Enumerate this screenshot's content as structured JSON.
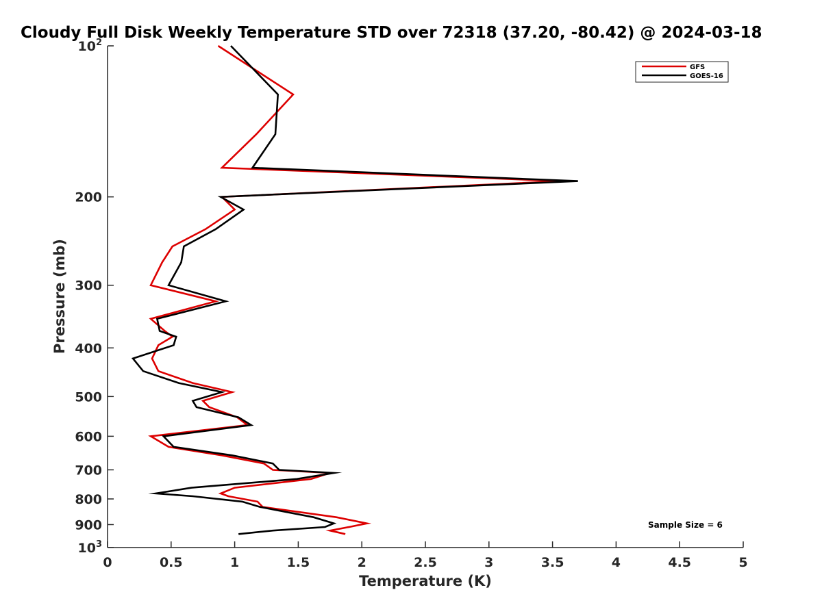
{
  "chart_data": {
    "type": "line",
    "title": "Cloudy Full Disk Weekly Temperature STD over 72318 (37.20, -80.42) @ 2024-03-18",
    "xlabel": "Temperature (K)",
    "ylabel": "Pressure (mb)",
    "xlim": [
      0,
      5
    ],
    "ylim": [
      100,
      1000
    ],
    "y_scale": "log",
    "y_reversed": true,
    "x_ticks": [
      "0",
      "0.5",
      "1",
      "1.5",
      "2",
      "2.5",
      "3",
      "3.5",
      "4",
      "4.5",
      "5"
    ],
    "y_ticks": [
      {
        "base": "10",
        "exp": "2"
      },
      {
        "label": "200"
      },
      {
        "label": "300"
      },
      {
        "label": "400"
      },
      {
        "label": "500"
      },
      {
        "label": "600"
      },
      {
        "label": "700"
      },
      {
        "label": "800"
      },
      {
        "label": "900"
      },
      {
        "base": "10",
        "exp": "3"
      }
    ],
    "legend_placement": "top-right",
    "annotation": "Sample Size = 6",
    "series": [
      {
        "name": "GFS",
        "color": "#dd0000",
        "points": [
          [
            0.87,
            100
          ],
          [
            1.46,
            125
          ],
          [
            1.17,
            150
          ],
          [
            0.9,
            175
          ],
          [
            3.58,
            186
          ],
          [
            0.9,
            200
          ],
          [
            1.0,
            212
          ],
          [
            0.77,
            232
          ],
          [
            0.51,
            251
          ],
          [
            0.43,
            270
          ],
          [
            0.34,
            300
          ],
          [
            0.85,
            323
          ],
          [
            0.34,
            350
          ],
          [
            0.45,
            370
          ],
          [
            0.51,
            380
          ],
          [
            0.4,
            395
          ],
          [
            0.35,
            420
          ],
          [
            0.4,
            445
          ],
          [
            0.67,
            470
          ],
          [
            0.98,
            490
          ],
          [
            0.75,
            510
          ],
          [
            0.8,
            525
          ],
          [
            1.02,
            550
          ],
          [
            1.1,
            570
          ],
          [
            0.34,
            600
          ],
          [
            0.48,
            630
          ],
          [
            0.9,
            655
          ],
          [
            1.23,
            680
          ],
          [
            1.3,
            700
          ],
          [
            1.75,
            710
          ],
          [
            1.6,
            730
          ],
          [
            1.0,
            760
          ],
          [
            0.89,
            780
          ],
          [
            0.95,
            790
          ],
          [
            1.18,
            810
          ],
          [
            1.22,
            830
          ],
          [
            1.8,
            870
          ],
          [
            2.04,
            895
          ],
          [
            1.9,
            910
          ],
          [
            1.75,
            925
          ],
          [
            1.87,
            940
          ]
        ]
      },
      {
        "name": "GOES-16",
        "color": "#000000",
        "points": [
          [
            0.97,
            100
          ],
          [
            1.34,
            125
          ],
          [
            1.32,
            150
          ],
          [
            1.14,
            175
          ],
          [
            3.7,
            186
          ],
          [
            0.89,
            200
          ],
          [
            1.07,
            212
          ],
          [
            0.85,
            232
          ],
          [
            0.6,
            251
          ],
          [
            0.58,
            270
          ],
          [
            0.48,
            300
          ],
          [
            0.93,
            323
          ],
          [
            0.39,
            350
          ],
          [
            0.41,
            370
          ],
          [
            0.54,
            380
          ],
          [
            0.52,
            395
          ],
          [
            0.2,
            420
          ],
          [
            0.28,
            445
          ],
          [
            0.56,
            470
          ],
          [
            0.9,
            490
          ],
          [
            0.67,
            510
          ],
          [
            0.7,
            525
          ],
          [
            1.03,
            550
          ],
          [
            1.13,
            570
          ],
          [
            0.44,
            600
          ],
          [
            0.52,
            630
          ],
          [
            0.98,
            655
          ],
          [
            1.3,
            680
          ],
          [
            1.35,
            700
          ],
          [
            1.78,
            710
          ],
          [
            1.49,
            730
          ],
          [
            0.66,
            760
          ],
          [
            0.38,
            780
          ],
          [
            0.67,
            790
          ],
          [
            1.06,
            810
          ],
          [
            1.2,
            830
          ],
          [
            1.62,
            870
          ],
          [
            1.78,
            895
          ],
          [
            1.71,
            910
          ],
          [
            1.3,
            925
          ],
          [
            1.03,
            940
          ]
        ]
      }
    ]
  }
}
